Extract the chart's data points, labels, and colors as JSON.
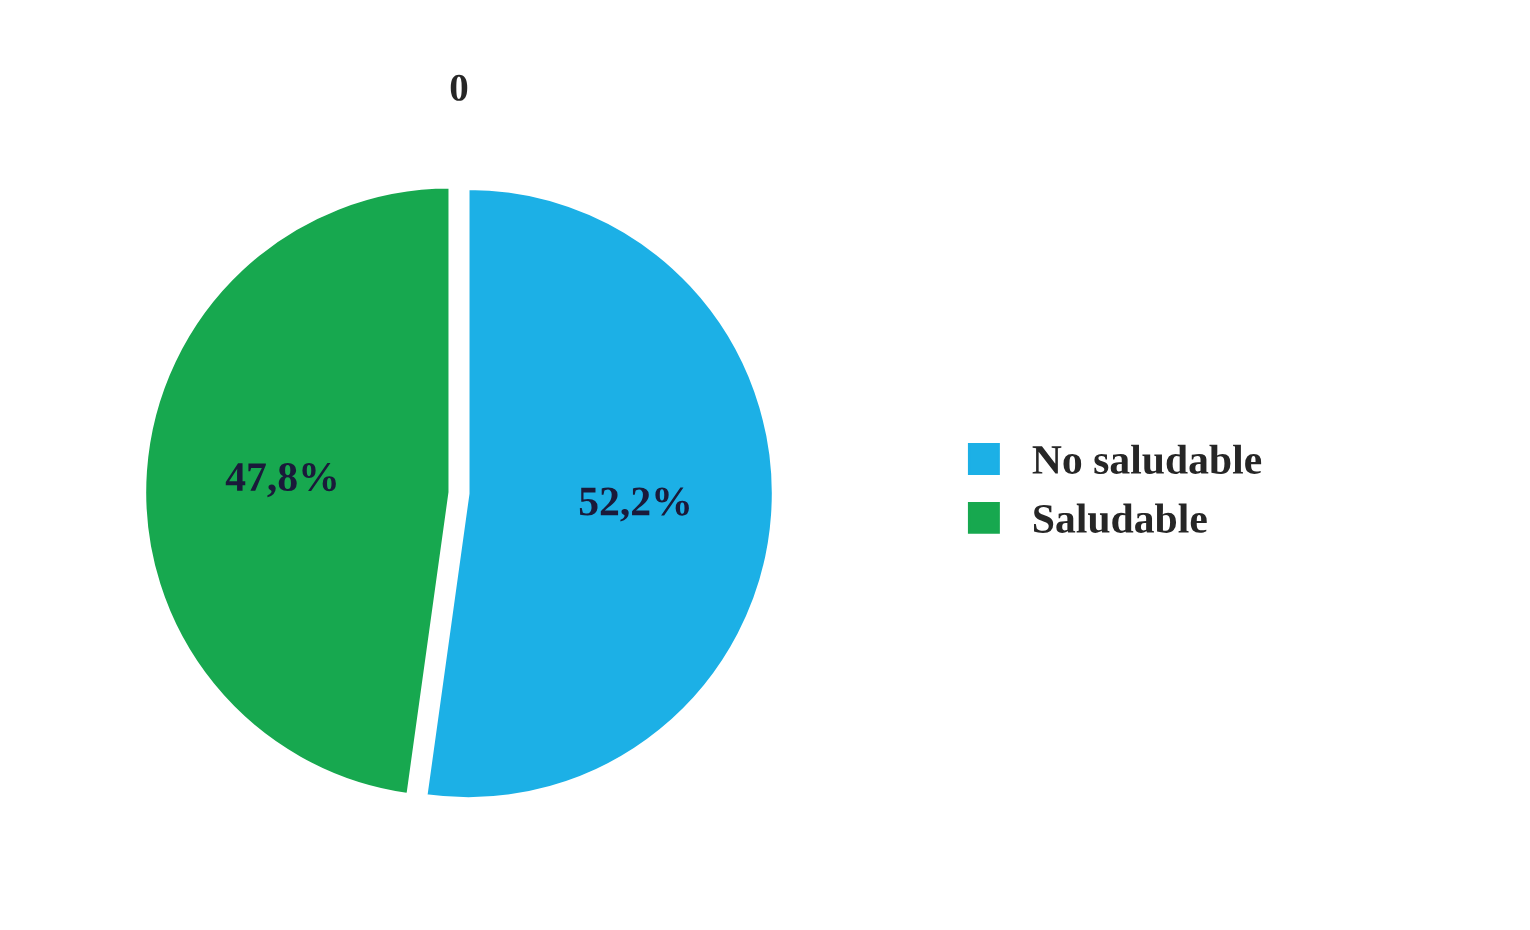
{
  "chart_data": {
    "type": "pie",
    "title": "0",
    "categories": [
      "No saludable",
      "Saludable"
    ],
    "values": [
      52.2,
      47.8
    ],
    "colors": [
      "#1cb0e6",
      "#17a84f"
    ],
    "value_labels": [
      "52,2%",
      "47,8%"
    ],
    "legend": "right"
  }
}
